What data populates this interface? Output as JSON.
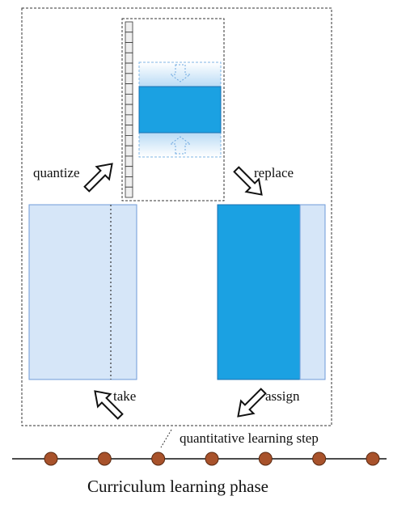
{
  "labels": {
    "quantize": "quantize",
    "replace": "replace",
    "take": "take",
    "assign": "assign",
    "step": "quantitative learning step",
    "phase": "Curriculum learning phase"
  },
  "colors": {
    "light_block": "#d6e6f8",
    "dark_block": "#1ba1e2",
    "block_border": "#6f9bd8",
    "node_fill": "#a8522b",
    "node_stroke": "#5a2a12",
    "dashed_line": "#333333"
  },
  "icons": {
    "quantize_arrow": "hollow-arrow-up-right",
    "replace_arrow": "hollow-arrow-down-right",
    "take_arrow": "hollow-arrow-up-left",
    "assign_arrow": "hollow-arrow-down-left"
  },
  "timeline": {
    "node_count": 7
  },
  "quantization_grid": {
    "cell_count": 17
  }
}
